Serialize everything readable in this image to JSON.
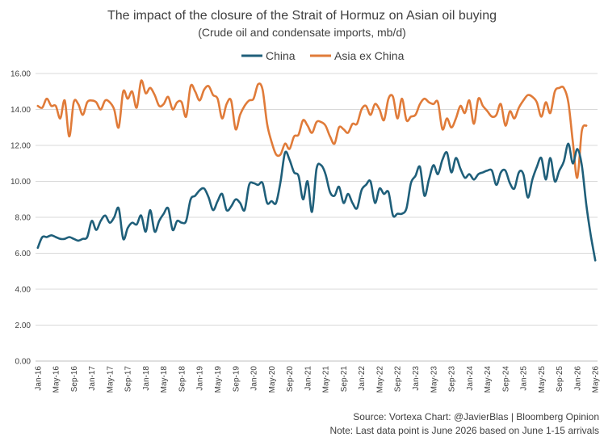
{
  "chart_data": {
    "type": "line",
    "title": "The impact of the closure of the Strait of Hormuz on Asian oil buying",
    "subtitle": "(Crude oil and condensate imports, mb/d)",
    "xlabel": "",
    "ylabel": "",
    "ylim": [
      0,
      16
    ],
    "yticks": [
      "0.00",
      "2.00",
      "4.00",
      "6.00",
      "8.00",
      "10.00",
      "12.00",
      "14.00",
      "16.00"
    ],
    "grid": true,
    "legend_position": "top-center",
    "xticks": [
      "Jan-16",
      "May-16",
      "Sep-16",
      "Jan-17",
      "May-17",
      "Sep-17",
      "Jan-18",
      "May-18",
      "Sep-18",
      "Jan-19",
      "May-19",
      "Sep-19",
      "Jan-20",
      "May-20",
      "Sep-20",
      "Jan-21",
      "May-21",
      "Sep-21",
      "Jan-22",
      "May-22",
      "Sep-22",
      "Jan-23",
      "May-23",
      "Sep-23",
      "Jan-24",
      "May-24",
      "Sep-24",
      "Jan-25",
      "May-25",
      "Sep-25",
      "Jan-26",
      "May-26"
    ],
    "x_start": "Jan-16",
    "series": [
      {
        "name": "China",
        "color": "#1f5f7a",
        "values": [
          6.3,
          6.9,
          6.9,
          7.0,
          6.9,
          6.8,
          6.8,
          6.9,
          6.8,
          6.7,
          6.8,
          6.9,
          7.8,
          7.3,
          7.8,
          8.1,
          7.7,
          8.0,
          8.5,
          6.8,
          7.4,
          7.7,
          7.6,
          8.1,
          7.2,
          8.4,
          7.2,
          7.8,
          8.2,
          8.5,
          7.3,
          7.8,
          7.7,
          7.8,
          9.0,
          9.2,
          9.5,
          9.6,
          9.1,
          8.4,
          8.9,
          9.3,
          8.4,
          8.6,
          9.0,
          8.8,
          8.4,
          9.8,
          9.9,
          9.8,
          9.9,
          8.8,
          8.9,
          8.8,
          10.0,
          11.6,
          11.2,
          10.5,
          10.3,
          9.0,
          10.0,
          8.3,
          10.7,
          10.9,
          10.4,
          9.4,
          9.2,
          9.7,
          8.8,
          9.3,
          8.8,
          8.5,
          9.5,
          9.8,
          10.0,
          8.8,
          9.6,
          9.3,
          9.4,
          8.1,
          8.2,
          8.2,
          8.5,
          9.9,
          10.3,
          10.8,
          9.2,
          10.1,
          10.9,
          10.4,
          11.2,
          11.6,
          10.5,
          11.3,
          10.7,
          10.2,
          10.4,
          10.1,
          10.4,
          10.5,
          10.6,
          10.6,
          9.8,
          10.5,
          10.6,
          9.9,
          9.6,
          10.5,
          10.4,
          9.1,
          10.1,
          10.8,
          11.3,
          10.1,
          11.3,
          10.0,
          10.6,
          11.1,
          12.1,
          11.0,
          11.8,
          10.9,
          8.7,
          7.0,
          5.6
        ]
      },
      {
        "name": "Asia ex China",
        "color": "#e07b39",
        "values": [
          14.2,
          14.1,
          14.6,
          14.2,
          14.2,
          13.5,
          14.5,
          12.5,
          14.4,
          14.3,
          13.7,
          14.4,
          14.5,
          14.4,
          14.0,
          14.5,
          14.4,
          14.0,
          13.0,
          15.0,
          14.6,
          15.0,
          14.1,
          15.6,
          14.9,
          15.2,
          14.8,
          14.2,
          14.3,
          14.7,
          14.0,
          14.4,
          14.4,
          13.6,
          15.3,
          15.0,
          14.5,
          15.1,
          15.3,
          14.8,
          14.6,
          13.5,
          14.3,
          14.5,
          12.9,
          13.7,
          14.2,
          14.5,
          14.6,
          15.4,
          15.1,
          13.2,
          12.2,
          11.5,
          11.5,
          12.1,
          11.8,
          12.5,
          12.6,
          13.4,
          13.1,
          12.7,
          13.3,
          13.3,
          13.1,
          12.5,
          12.1,
          13.0,
          12.9,
          12.7,
          13.2,
          13.2,
          14.0,
          14.2,
          13.7,
          14.3,
          14.0,
          13.4,
          14.6,
          14.7,
          13.5,
          14.6,
          13.4,
          13.6,
          13.7,
          14.3,
          14.6,
          14.4,
          14.3,
          14.4,
          12.9,
          13.5,
          13.0,
          13.5,
          14.2,
          13.8,
          14.5,
          13.2,
          14.6,
          14.2,
          13.9,
          13.6,
          13.7,
          14.3,
          13.1,
          13.9,
          13.5,
          14.1,
          14.5,
          14.8,
          14.7,
          14.4,
          13.6,
          14.4,
          13.8,
          15.0,
          15.2,
          15.2,
          14.4,
          12.2,
          10.2,
          12.8,
          13.1
        ]
      }
    ]
  },
  "footer": {
    "source": "Source: Vortexa    Chart: @JavierBlas  |  Bloomberg Opinion",
    "note": "Note: Last data point is June 2026 based on June 1-15 arrivals"
  }
}
